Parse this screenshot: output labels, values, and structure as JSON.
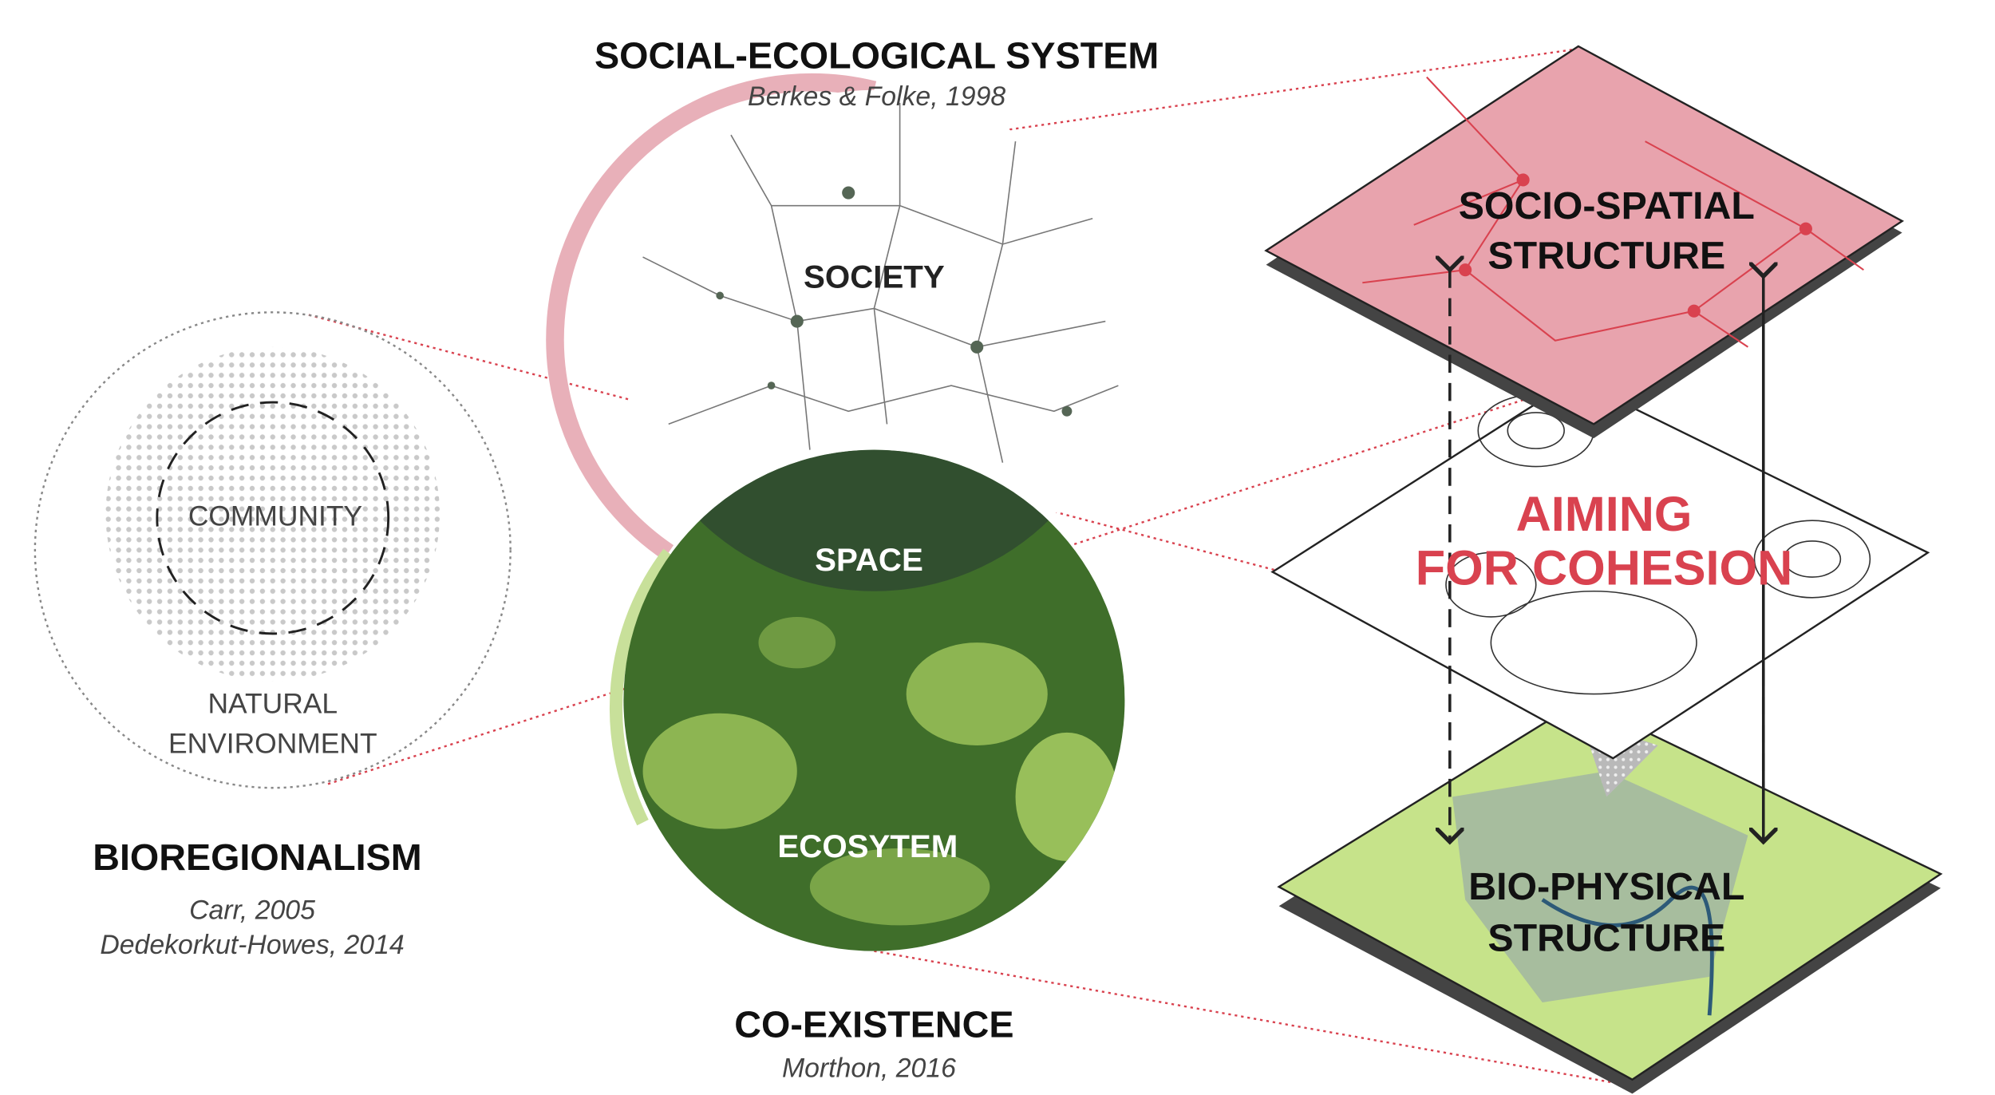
{
  "frameworks": [
    {
      "title": "SOCIAL-ECOLOGICAL SYSTEM",
      "citations": [
        "Berkes & Folke, 1998"
      ]
    },
    {
      "title": "BIOREGIONALISM",
      "citations": [
        "Carr, 2005",
        "Dedekorkut-Howes, 2014"
      ]
    },
    {
      "title": "CO-EXISTENCE",
      "citations": [
        "Morthon, 2016"
      ]
    }
  ],
  "bioregion_diagram": {
    "inner": "COMMUNITY",
    "outer": [
      "NATURAL",
      "ENVIRONMENT"
    ]
  },
  "system_diagram": {
    "upper": "SOCIETY",
    "overlap": "SPACE",
    "lower": "ECOSYTEM"
  },
  "layers": [
    {
      "lines": [
        "SOCIO-SPATIAL",
        "STRUCTURE"
      ]
    },
    {
      "lines": [
        "AIMING",
        "FOR COHESION"
      ]
    },
    {
      "lines": [
        "BIO-PHYSICAL",
        "STRUCTURE"
      ]
    }
  ]
}
